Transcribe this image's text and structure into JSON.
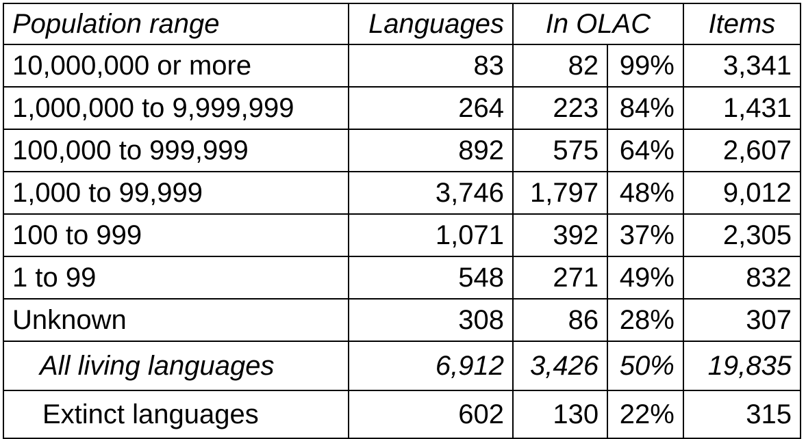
{
  "table": {
    "headers": {
      "population_range": "Population range",
      "languages": "Languages",
      "in_olac": "In OLAC",
      "items": "Items"
    },
    "rows": [
      {
        "range": "10,000,000 or more",
        "languages": "83",
        "in_olac": "82",
        "percent": "99%",
        "items": "3,341"
      },
      {
        "range": "1,000,000 to 9,999,999",
        "languages": "264",
        "in_olac": "223",
        "percent": "84%",
        "items": "1,431"
      },
      {
        "range": "100,000 to 999,999",
        "languages": "892",
        "in_olac": "575",
        "percent": "64%",
        "items": "2,607"
      },
      {
        "range": "1,000 to 99,999",
        "languages": "3,746",
        "in_olac": "1,797",
        "percent": "48%",
        "items": "9,012"
      },
      {
        "range": "100 to 999",
        "languages": "1,071",
        "in_olac": "392",
        "percent": "37%",
        "items": "2,305"
      },
      {
        "range": "1 to 99",
        "languages": "548",
        "in_olac": "271",
        "percent": "49%",
        "items": "832"
      },
      {
        "range": "Unknown",
        "languages": "308",
        "in_olac": "86",
        "percent": "28%",
        "items": "307"
      }
    ],
    "total": {
      "range": "All living languages",
      "languages": "6,912",
      "in_olac": "3,426",
      "percent": "50%",
      "items": "19,835"
    },
    "extinct": {
      "range": "Extinct languages",
      "languages": "602",
      "in_olac": "130",
      "percent": "22%",
      "items": "315"
    }
  }
}
